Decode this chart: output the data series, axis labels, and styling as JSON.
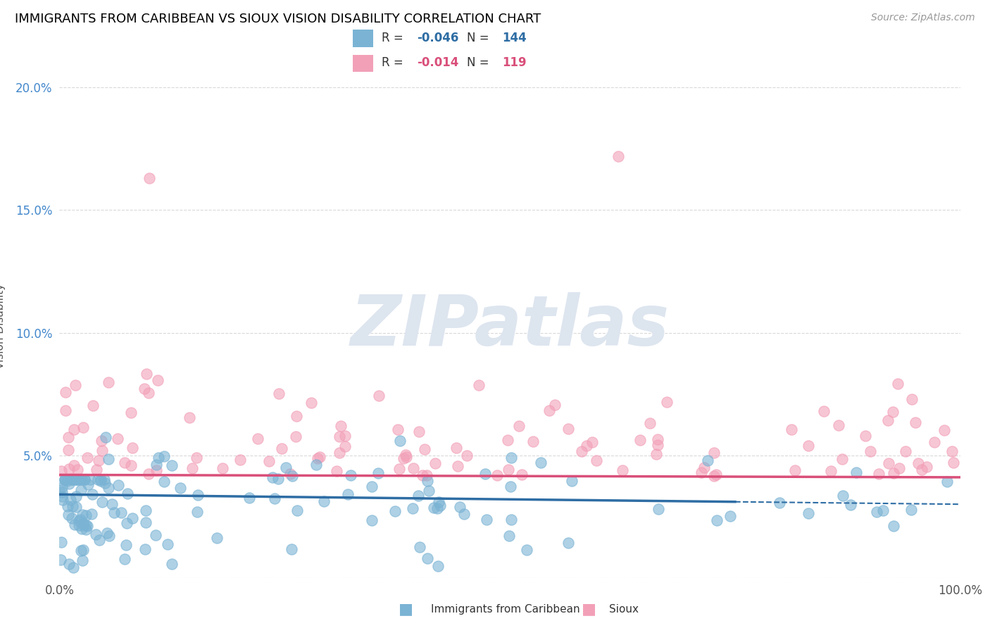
{
  "title": "IMMIGRANTS FROM CARIBBEAN VS SIOUX VISION DISABILITY CORRELATION CHART",
  "source": "Source: ZipAtlas.com",
  "ylabel": "Vision Disability",
  "legend_label1": "Immigrants from Caribbean",
  "legend_label2": "Sioux",
  "r1": -0.046,
  "n1": 144,
  "r2": -0.014,
  "n2": 119,
  "color1": "#7ab3d4",
  "color2": "#f2a0b8",
  "line_color1": "#2e6da4",
  "line_color2": "#d94f7a",
  "watermark_color": "#dde5ef",
  "bg_color": "#ffffff",
  "grid_color": "#d0d0d0",
  "xlim": [
    0,
    100
  ],
  "ylim": [
    0,
    0.205
  ],
  "yticks": [
    0.0,
    0.05,
    0.1,
    0.15,
    0.2
  ],
  "ytick_labels": [
    "",
    "5.0%",
    "10.0%",
    "15.0%",
    "20.0%"
  ],
  "trend1_x0": 0,
  "trend1_x1": 100,
  "trend1_y0": 0.034,
  "trend1_y1": 0.03,
  "trend1_solid_end": 75,
  "trend2_y0": 0.042,
  "trend2_y1": 0.041
}
